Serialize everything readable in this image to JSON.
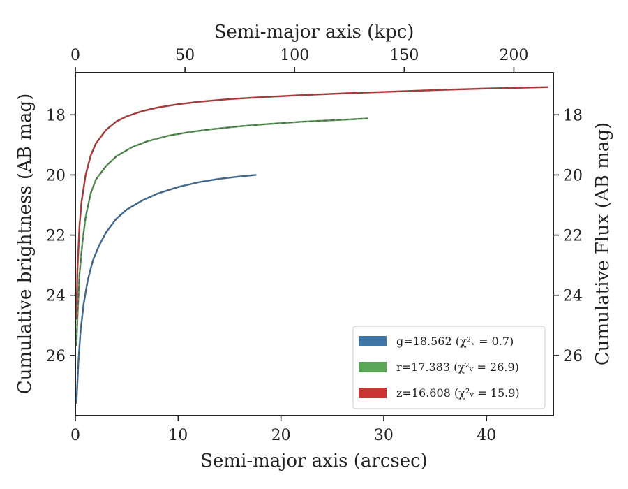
{
  "chart_data": {
    "type": "line",
    "x_bottom": {
      "label": "Semi-major axis (arcsec)",
      "range": [
        0,
        46.5
      ],
      "ticks": [
        "0",
        "10",
        "20",
        "30",
        "40"
      ],
      "tick_values": [
        0,
        10,
        20,
        30,
        40
      ]
    },
    "x_top": {
      "label": "Semi-major axis (kpc)",
      "range": [
        0,
        218
      ],
      "ticks": [
        "0",
        "50",
        "100",
        "150",
        "200"
      ],
      "tick_values": [
        0,
        50,
        100,
        150,
        200
      ]
    },
    "y_left": {
      "label": "Cumulative brightness (AB mag)",
      "range": [
        28.0,
        16.6
      ],
      "inverted": true,
      "ticks": [
        "18",
        "20",
        "22",
        "24",
        "26"
      ],
      "tick_values": [
        18,
        20,
        22,
        24,
        26
      ]
    },
    "y_right": {
      "label": "Cumulative Flux (AB mag)",
      "ticks": [
        "18",
        "20",
        "22",
        "24",
        "26"
      ],
      "tick_values": [
        18,
        20,
        22,
        24,
        26
      ]
    },
    "legend_position": "bottom-right",
    "series": [
      {
        "name": "g",
        "legend": "g=18.562 (χ²ᵥ = 0.7)",
        "color": "#3f76a8",
        "x": [
          0.1,
          0.3,
          0.5,
          0.8,
          1.2,
          1.7,
          2.3,
          3.0,
          4.0,
          5.0,
          6.5,
          8.0,
          10.0,
          12.0,
          14.0,
          16.0,
          17.6
        ],
        "y": [
          27.6,
          26.2,
          25.2,
          24.3,
          23.5,
          22.85,
          22.35,
          21.9,
          21.45,
          21.15,
          20.85,
          20.62,
          20.4,
          20.24,
          20.13,
          20.05,
          20.0
        ]
      },
      {
        "name": "r",
        "legend": "r=17.383 (χ²ᵥ = 26.9)",
        "color": "#5aa556",
        "x": [
          0.1,
          0.2,
          0.4,
          0.7,
          1.0,
          1.5,
          2.0,
          3.0,
          4.0,
          5.5,
          7.0,
          9.0,
          11.0,
          13.0,
          16.0,
          19.0,
          22.0,
          25.0,
          28.5
        ],
        "y": [
          25.7,
          24.8,
          23.3,
          22.2,
          21.4,
          20.6,
          20.15,
          19.7,
          19.38,
          19.08,
          18.88,
          18.7,
          18.58,
          18.49,
          18.38,
          18.3,
          18.23,
          18.18,
          18.12
        ]
      },
      {
        "name": "z",
        "legend": "z=16.608 (χ²ᵥ = 15.9)",
        "color": "#cc3434",
        "x": [
          0.1,
          0.2,
          0.4,
          0.6,
          1.0,
          1.5,
          2.0,
          3.0,
          4.0,
          5.0,
          6.5,
          8.0,
          10.0,
          12.0,
          15.0,
          18.0,
          22.0,
          26.0,
          30.0,
          35.0,
          40.0,
          46.0
        ],
        "y": [
          24.8,
          23.2,
          21.7,
          20.9,
          20.0,
          19.35,
          18.95,
          18.5,
          18.22,
          18.05,
          17.88,
          17.76,
          17.65,
          17.57,
          17.48,
          17.42,
          17.35,
          17.29,
          17.24,
          17.18,
          17.13,
          17.08
        ]
      }
    ]
  }
}
